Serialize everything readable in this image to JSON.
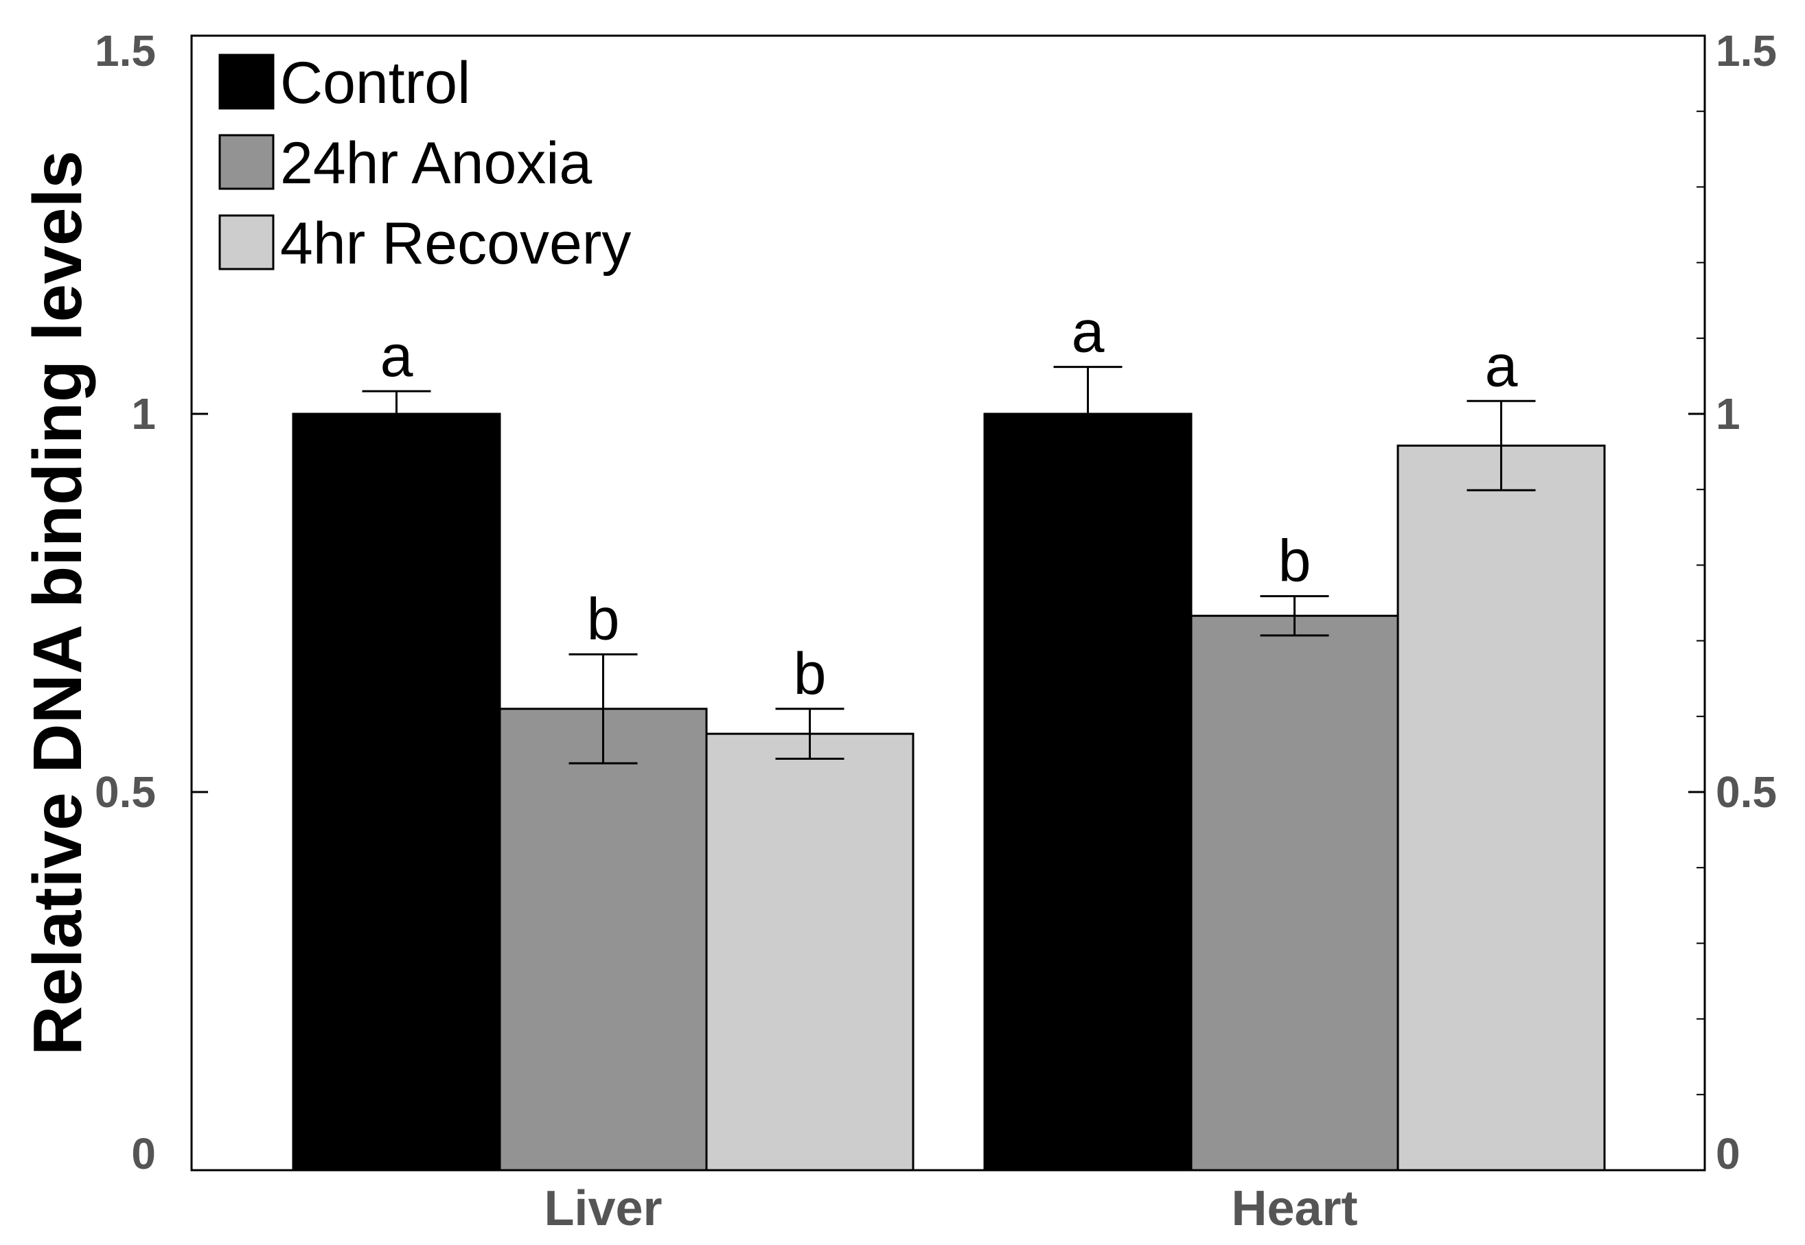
{
  "chart_data": {
    "type": "bar",
    "title": "",
    "xlabel": "",
    "ylabel": "Relative DNA binding levels",
    "ylim": [
      0,
      1.5
    ],
    "yticks": [
      0,
      0.5,
      1,
      1.5
    ],
    "ytick_labels": [
      "0",
      "0.5",
      "1",
      "1.5"
    ],
    "categories": [
      "Liver",
      "Heart"
    ],
    "series": [
      {
        "name": "Control",
        "color": "#000000",
        "values": [
          1.0,
          1.0
        ],
        "errors": [
          0.03,
          0.062
        ],
        "labels": [
          "a",
          "a"
        ]
      },
      {
        "name": "24hr Anoxia",
        "color": "#939393",
        "values": [
          0.61,
          0.733
        ],
        "errors": [
          0.072,
          0.026
        ],
        "labels": [
          "b",
          "b"
        ]
      },
      {
        "name": "4hr Recovery",
        "color": "#cdcdcd",
        "values": [
          0.577,
          0.958
        ],
        "errors": [
          0.033,
          0.059
        ],
        "labels": [
          "b",
          "a"
        ]
      }
    ],
    "legend_position": "top-left",
    "secondary_y_axis": true
  }
}
